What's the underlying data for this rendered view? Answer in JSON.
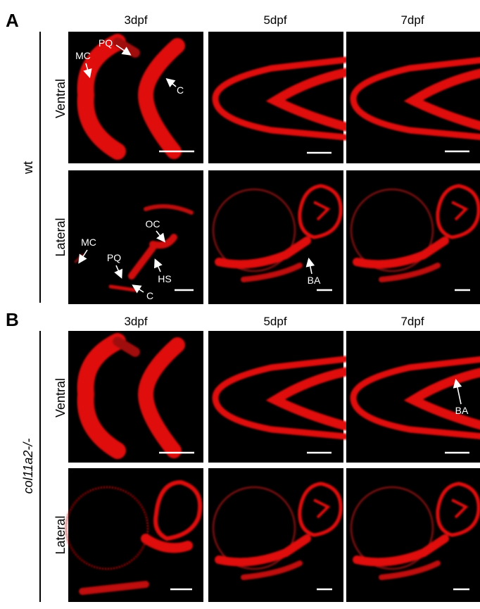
{
  "panels": [
    {
      "label": "A",
      "genotype": "wt",
      "columns": [
        "3dpf",
        "5dpf",
        "7dpf"
      ],
      "rows": [
        "Ventral",
        "Lateral"
      ],
      "annotations": [
        "MC",
        "PQ",
        "C",
        "MC",
        "PQ",
        "C",
        "OC",
        "HS",
        "BA"
      ]
    },
    {
      "label": "B",
      "genotype": "col11a2-/-",
      "columns": [
        "3dpf",
        "5dpf",
        "7dpf"
      ],
      "rows": [
        "Ventral",
        "Lateral"
      ],
      "annotations": [
        "BA"
      ]
    }
  ]
}
